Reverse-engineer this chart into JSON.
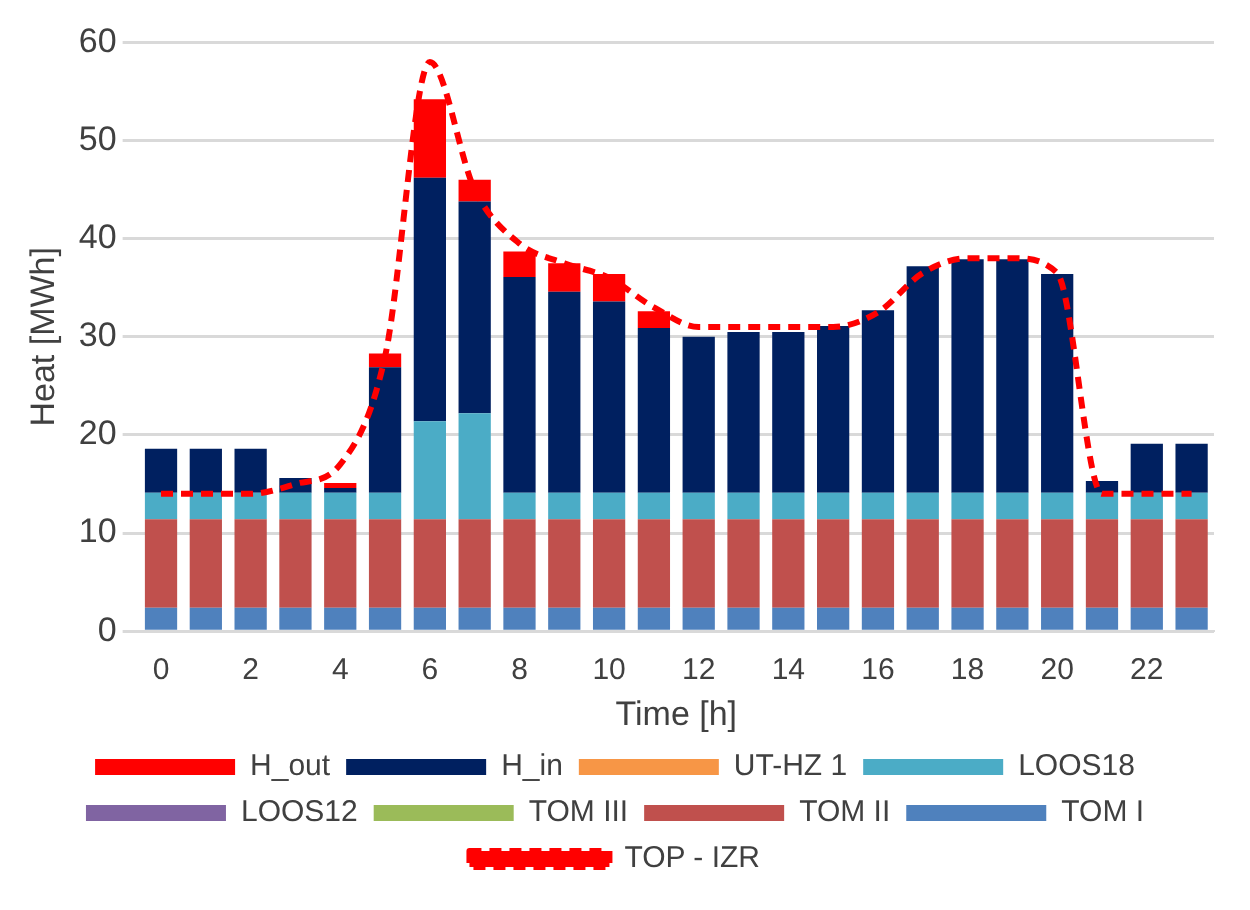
{
  "chart_data": {
    "type": "bar",
    "stacked": true,
    "xlabel": "Time [h]",
    "ylabel": "Heat [MWh]",
    "categories": [
      "0",
      null,
      "2",
      null,
      "4",
      null,
      "6",
      null,
      "8",
      null,
      "10",
      null,
      "12",
      null,
      "14",
      null,
      "16",
      null,
      "18",
      null,
      "20",
      null,
      "22",
      null
    ],
    "ylim": [
      0,
      60
    ],
    "yticks": [
      0,
      10,
      20,
      30,
      40,
      50,
      60
    ],
    "grid": "y",
    "legend": "bottom",
    "series": [
      {
        "name": "TOP - IZR",
        "type": "line",
        "color": "#ff0000",
        "line_style": "dashed",
        "marker": "none",
        "values": [
          14,
          14,
          14,
          15,
          17,
          28,
          58,
          45,
          39.5,
          37.5,
          36,
          33,
          31,
          31,
          31,
          31,
          32.5,
          36.5,
          38,
          38,
          36.5,
          14,
          14,
          14
        ]
      },
      {
        "name": "TOM I",
        "color": "#4f81bd",
        "values": [
          2.4,
          2.4,
          2.4,
          2.4,
          2.4,
          2.4,
          2.4,
          2.4,
          2.4,
          2.4,
          2.4,
          2.4,
          2.4,
          2.4,
          2.4,
          2.4,
          2.4,
          2.4,
          2.4,
          2.4,
          2.4,
          2.4,
          2.4,
          2.4
        ]
      },
      {
        "name": "TOM II",
        "color": "#c0504d",
        "values": [
          9,
          9,
          9,
          9,
          9,
          9,
          9,
          9,
          9,
          9,
          9,
          9,
          9,
          9,
          9,
          9,
          9,
          9,
          9,
          9,
          9,
          9,
          9,
          9
        ]
      },
      {
        "name": "TOM III",
        "color": "#9bbb59",
        "values": [
          0,
          0,
          0,
          0,
          0,
          0,
          0,
          0,
          0,
          0,
          0,
          0,
          0,
          0,
          0,
          0,
          0,
          0,
          0,
          0,
          0,
          0,
          0,
          0
        ]
      },
      {
        "name": "LOOS12",
        "color": "#8064a2",
        "values": [
          0,
          0,
          0,
          0,
          0,
          0,
          0,
          0,
          0,
          0,
          0,
          0,
          0,
          0,
          0,
          0,
          0,
          0,
          0,
          0,
          0,
          0,
          0,
          0
        ]
      },
      {
        "name": "LOOS18",
        "color": "#4bacc6",
        "values": [
          2.7,
          2.7,
          2.7,
          2.7,
          2.7,
          2.7,
          10,
          10.8,
          2.7,
          2.7,
          2.7,
          2.7,
          2.7,
          2.7,
          2.7,
          2.7,
          2.7,
          2.7,
          2.7,
          2.7,
          2.7,
          2.7,
          2.7,
          2.7
        ]
      },
      {
        "name": "UT-HZ 1",
        "color": "#f79646",
        "values": [
          0,
          0,
          0,
          0,
          0,
          0,
          0,
          0,
          0,
          0,
          0,
          0,
          0,
          0,
          0,
          0,
          0,
          0,
          0,
          0,
          0,
          0,
          0,
          0
        ]
      },
      {
        "name": "H_in",
        "color": "#002060",
        "values": [
          4.5,
          4.5,
          4.5,
          1.5,
          0.5,
          12.8,
          24.8,
          21.6,
          22,
          20.5,
          19.5,
          16.8,
          15.9,
          16.4,
          16.4,
          17,
          18.6,
          23.1,
          23.8,
          23.8,
          22.3,
          1.2,
          5,
          5
        ]
      },
      {
        "name": "H_out",
        "color": "#ff0000",
        "values": [
          null,
          null,
          null,
          null,
          0.5,
          1.4,
          8,
          2.2,
          2.6,
          2.9,
          2.8,
          1.7,
          null,
          null,
          null,
          null,
          null,
          null,
          null,
          null,
          null,
          null,
          null,
          null
        ]
      }
    ]
  }
}
